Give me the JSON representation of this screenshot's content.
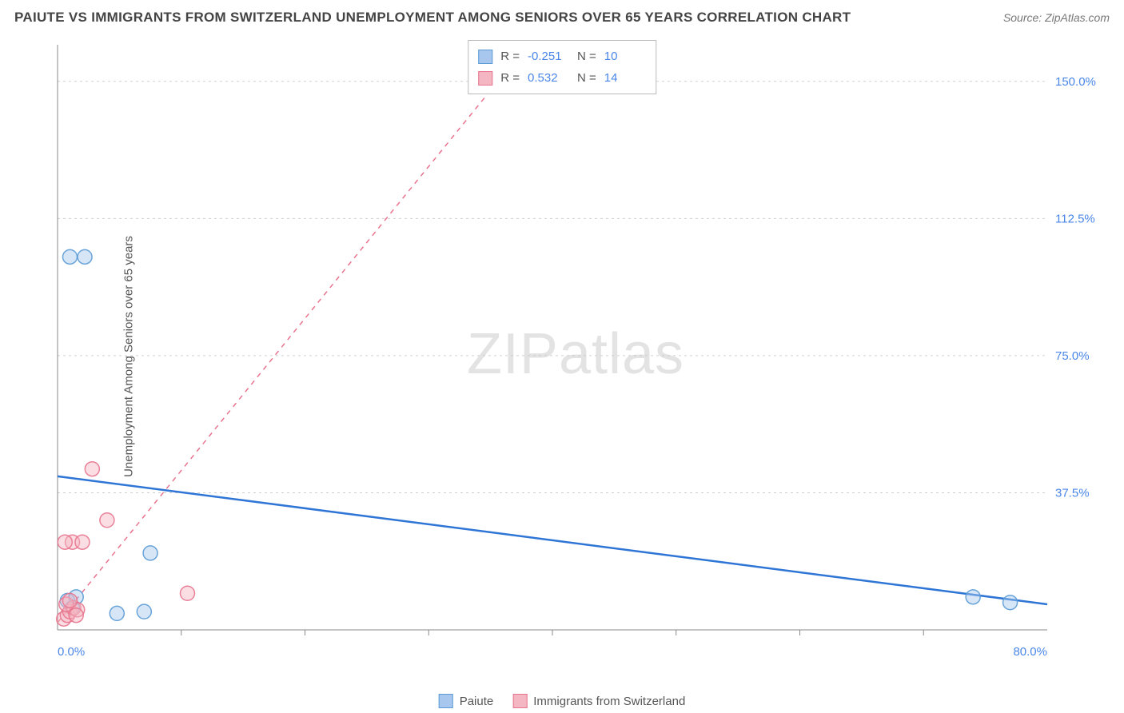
{
  "title": "PAIUTE VS IMMIGRANTS FROM SWITZERLAND UNEMPLOYMENT AMONG SENIORS OVER 65 YEARS CORRELATION CHART",
  "source": "Source: ZipAtlas.com",
  "ylabel": "Unemployment Among Seniors over 65 years",
  "watermark_bold": "ZIP",
  "watermark_light": "atlas",
  "chart": {
    "type": "scatter",
    "xlim": [
      0,
      80
    ],
    "ylim": [
      0,
      160
    ],
    "xtick_labels": [
      "0.0%",
      "80.0%"
    ],
    "xtick_positions": [
      0,
      80
    ],
    "xminor_ticks": [
      10,
      20,
      30,
      40,
      50,
      60,
      70
    ],
    "ytick_labels": [
      "37.5%",
      "75.0%",
      "112.5%",
      "150.0%"
    ],
    "ytick_positions": [
      37.5,
      75.0,
      112.5,
      150.0
    ],
    "background_color": "#ffffff",
    "grid_color": "#d0d0d0",
    "axis_color": "#888888",
    "tick_label_color": "#4a86e8",
    "marker_radius": 9,
    "marker_opacity": 0.45,
    "marker_stroke_opacity": 0.9
  },
  "series": [
    {
      "name": "Paiute",
      "legend_label": "Paiute",
      "color_fill": "#a7c7ee",
      "color_stroke": "#5b9bd5",
      "trend_color": "#2e75d6",
      "trend_dash": "none",
      "trend_width": 2.5,
      "R": "-0.251",
      "N": "10",
      "points": [
        {
          "x": 1.0,
          "y": 102
        },
        {
          "x": 2.2,
          "y": 102
        },
        {
          "x": 7.5,
          "y": 21
        },
        {
          "x": 0.8,
          "y": 8
        },
        {
          "x": 1.2,
          "y": 6
        },
        {
          "x": 1.5,
          "y": 9
        },
        {
          "x": 4.8,
          "y": 4.5
        },
        {
          "x": 7.0,
          "y": 5.0
        },
        {
          "x": 74.0,
          "y": 9.0
        },
        {
          "x": 77.0,
          "y": 7.5
        }
      ],
      "trend_line": {
        "x1": 0,
        "y1": 42,
        "x2": 80,
        "y2": 7
      }
    },
    {
      "name": "Immigrants from Switzerland",
      "legend_label": "Immigrants from Switzerland",
      "color_fill": "#f4b6c2",
      "color_stroke": "#e8748e",
      "trend_color": "#e8748e",
      "trend_dash": "6 6",
      "trend_width": 1.5,
      "R": "0.532",
      "N": "14",
      "points": [
        {
          "x": 0.5,
          "y": 3
        },
        {
          "x": 0.8,
          "y": 4
        },
        {
          "x": 1.0,
          "y": 5
        },
        {
          "x": 1.3,
          "y": 6
        },
        {
          "x": 1.6,
          "y": 5.5
        },
        {
          "x": 0.7,
          "y": 7
        },
        {
          "x": 1.0,
          "y": 8
        },
        {
          "x": 1.2,
          "y": 24
        },
        {
          "x": 2.0,
          "y": 24
        },
        {
          "x": 0.6,
          "y": 24
        },
        {
          "x": 2.8,
          "y": 44
        },
        {
          "x": 4.0,
          "y": 30
        },
        {
          "x": 10.5,
          "y": 10
        },
        {
          "x": 1.5,
          "y": 4
        }
      ],
      "trend_line": {
        "x1": 0,
        "y1": 2,
        "x2": 38,
        "y2": 160
      }
    }
  ],
  "corr_box": {
    "R_label": "R =",
    "N_label": "N ="
  }
}
